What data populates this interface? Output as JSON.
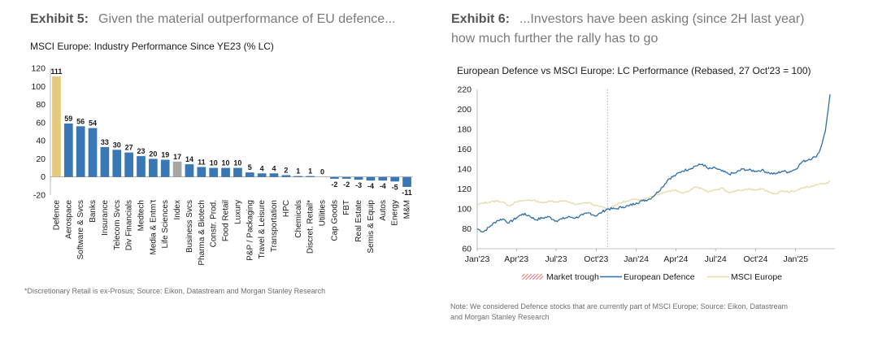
{
  "exhibit5": {
    "label": "Exhibit 5:",
    "heading": "Given the material outperformance of EU defence...",
    "chart_title": "MSCI Europe: Industry Performance Since YE23 (% LC)",
    "footnote": "*Discretionary Retail is ex-Prosus; Source: Eikon, Datastream and Morgan Stanley Research"
  },
  "exhibit6": {
    "label": "Exhibit 6:",
    "heading_line1": "...Investors have been asking (since 2H last year)",
    "heading_line2": "how much further the rally has to go",
    "chart_title": "European Defence vs MSCI Europe: LC Performance (Rebased, 27 Oct'23 = 100)",
    "footnote_line1": "Note: We considered Defence stocks that are currently part of MSCI Europe; Source: Eikon, Datastream",
    "footnote_line2": "and Morgan Stanley Research"
  },
  "colors": {
    "defence_bar": "#E5C97F",
    "index_bar": "#A6A6A6",
    "main_bar": "#3A78B5",
    "europe_line": "#E8D9A8",
    "defence_line": "#2F6FA8",
    "trough": "#E04B4B"
  },
  "chart_data": [
    {
      "type": "bar",
      "title": "MSCI Europe: Industry Performance Since YE23 (% LC)",
      "ylim": [
        -20,
        120
      ],
      "yticks": [
        -20,
        0,
        20,
        40,
        60,
        80,
        100,
        120
      ],
      "categories": [
        "Defence",
        "Aerospace",
        "Software & Svcs",
        "Banks",
        "Insurance",
        "Telecom Svcs",
        "Div Financials",
        "Medtech",
        "Media & Entm't",
        "Life Sciences",
        "Index",
        "Business Svcs",
        "Pharma & Biotech",
        "Constr. Prod.",
        "Food Retail",
        "Luxury",
        "P&P / Packaging",
        "Travel & Leisure",
        "Transportation",
        "HPC",
        "Chemicals",
        "Discret. Retail*",
        "Utilities",
        "Cap Goods",
        "FBT",
        "Real Estate",
        "Semis & Equip",
        "Autos",
        "Energy",
        "M&M"
      ],
      "values": [
        111,
        59,
        56,
        54,
        33,
        30,
        27,
        23,
        20,
        19,
        17,
        14,
        11,
        10,
        10,
        10,
        5,
        4,
        4,
        2,
        1,
        1,
        0,
        -2,
        -2,
        -3,
        -4,
        -4,
        -5,
        -11
      ],
      "value_labels": [
        "111",
        "59",
        "56",
        "54",
        "33",
        "30",
        "27",
        "23",
        "20",
        "19",
        "17",
        "14",
        "11",
        "10",
        "10",
        "10",
        "5",
        "4",
        "4",
        "2",
        "1",
        "1",
        "0",
        "-2",
        "-2",
        "-3",
        "-4",
        "-4",
        "-5",
        "-11"
      ],
      "grid": false
    },
    {
      "type": "line",
      "title": "European Defence vs MSCI Europe: LC Performance (Rebased, 27 Oct'23 = 100)",
      "ylim": [
        60,
        220
      ],
      "yticks": [
        60,
        80,
        100,
        120,
        140,
        160,
        180,
        200,
        220
      ],
      "xlim": [
        "2023-01-01",
        "2025-04-01"
      ],
      "xticks": [
        "Jan'23",
        "Apr'23",
        "Jul'23",
        "Oct'23",
        "Jan'24",
        "Apr'24",
        "Jul'24",
        "Oct'24",
        "Jan'25"
      ],
      "xtick_dates": [
        "2023-01-01",
        "2023-04-01",
        "2023-07-01",
        "2023-10-01",
        "2024-01-01",
        "2024-04-01",
        "2024-07-01",
        "2024-10-01",
        "2025-01-01"
      ],
      "market_trough_date": "2023-10-27",
      "legend": [
        "Market trough",
        "European Defence",
        "MSCI Europe"
      ],
      "legend_position": "bottom",
      "series": [
        {
          "name": "European Defence",
          "points": [
            [
              "2023-01-01",
              80
            ],
            [
              "2023-01-15",
              77
            ],
            [
              "2023-02-01",
              83
            ],
            [
              "2023-02-15",
              88
            ],
            [
              "2023-03-01",
              90
            ],
            [
              "2023-03-15",
              86
            ],
            [
              "2023-04-01",
              91
            ],
            [
              "2023-04-15",
              95
            ],
            [
              "2023-05-01",
              93
            ],
            [
              "2023-05-15",
              89
            ],
            [
              "2023-06-01",
              91
            ],
            [
              "2023-06-15",
              92
            ],
            [
              "2023-07-01",
              88
            ],
            [
              "2023-07-15",
              90
            ],
            [
              "2023-08-01",
              92
            ],
            [
              "2023-08-15",
              91
            ],
            [
              "2023-09-01",
              94
            ],
            [
              "2023-09-15",
              96
            ],
            [
              "2023-10-01",
              93
            ],
            [
              "2023-10-15",
              97
            ],
            [
              "2023-10-27",
              100
            ],
            [
              "2023-11-15",
              100
            ],
            [
              "2023-12-01",
              102
            ],
            [
              "2023-12-15",
              103
            ],
            [
              "2024-01-01",
              106
            ],
            [
              "2024-01-15",
              108
            ],
            [
              "2024-02-01",
              110
            ],
            [
              "2024-02-15",
              115
            ],
            [
              "2024-03-01",
              122
            ],
            [
              "2024-03-15",
              130
            ],
            [
              "2024-04-01",
              134
            ],
            [
              "2024-04-15",
              138
            ],
            [
              "2024-05-01",
              140
            ],
            [
              "2024-05-15",
              143
            ],
            [
              "2024-06-01",
              145
            ],
            [
              "2024-06-15",
              140
            ],
            [
              "2024-07-01",
              141
            ],
            [
              "2024-07-15",
              138
            ],
            [
              "2024-08-01",
              135
            ],
            [
              "2024-08-15",
              136
            ],
            [
              "2024-09-01",
              140
            ],
            [
              "2024-09-15",
              139
            ],
            [
              "2024-10-01",
              138
            ],
            [
              "2024-10-15",
              139
            ],
            [
              "2024-11-01",
              136
            ],
            [
              "2024-11-15",
              135
            ],
            [
              "2024-12-01",
              138
            ],
            [
              "2024-12-15",
              137
            ],
            [
              "2025-01-01",
              140
            ],
            [
              "2025-01-15",
              147
            ],
            [
              "2025-02-01",
              150
            ],
            [
              "2025-02-15",
              152
            ],
            [
              "2025-02-25",
              158
            ],
            [
              "2025-03-05",
              170
            ],
            [
              "2025-03-10",
              178
            ],
            [
              "2025-03-14",
              192
            ],
            [
              "2025-03-18",
              205
            ],
            [
              "2025-03-21",
              215
            ]
          ]
        },
        {
          "name": "MSCI Europe",
          "points": [
            [
              "2023-01-01",
              104
            ],
            [
              "2023-01-15",
              106
            ],
            [
              "2023-02-01",
              107
            ],
            [
              "2023-02-15",
              108
            ],
            [
              "2023-03-01",
              107
            ],
            [
              "2023-03-15",
              103
            ],
            [
              "2023-04-01",
              107
            ],
            [
              "2023-04-15",
              108
            ],
            [
              "2023-05-01",
              109
            ],
            [
              "2023-05-15",
              108
            ],
            [
              "2023-06-01",
              106
            ],
            [
              "2023-06-15",
              108
            ],
            [
              "2023-07-01",
              107
            ],
            [
              "2023-07-15",
              108
            ],
            [
              "2023-08-01",
              107
            ],
            [
              "2023-08-15",
              104
            ],
            [
              "2023-09-01",
              106
            ],
            [
              "2023-09-15",
              106
            ],
            [
              "2023-10-01",
              103
            ],
            [
              "2023-10-15",
              102
            ],
            [
              "2023-10-27",
              100
            ],
            [
              "2023-11-15",
              104
            ],
            [
              "2023-12-01",
              107
            ],
            [
              "2023-12-15",
              108
            ],
            [
              "2024-01-01",
              110
            ],
            [
              "2024-01-15",
              109
            ],
            [
              "2024-02-01",
              112
            ],
            [
              "2024-02-15",
              114
            ],
            [
              "2024-03-01",
              116
            ],
            [
              "2024-03-15",
              118
            ],
            [
              "2024-04-01",
              119
            ],
            [
              "2024-04-15",
              116
            ],
            [
              "2024-05-01",
              118
            ],
            [
              "2024-05-15",
              122
            ],
            [
              "2024-06-01",
              120
            ],
            [
              "2024-06-15",
              117
            ],
            [
              "2024-07-01",
              119
            ],
            [
              "2024-07-15",
              121
            ],
            [
              "2024-08-01",
              116
            ],
            [
              "2024-08-15",
              118
            ],
            [
              "2024-09-01",
              119
            ],
            [
              "2024-09-15",
              120
            ],
            [
              "2024-10-01",
              119
            ],
            [
              "2024-10-15",
              120
            ],
            [
              "2024-11-01",
              117
            ],
            [
              "2024-11-15",
              115
            ],
            [
              "2024-12-01",
              118
            ],
            [
              "2024-12-15",
              117
            ],
            [
              "2025-01-01",
              118
            ],
            [
              "2025-01-15",
              121
            ],
            [
              "2025-02-01",
              122
            ],
            [
              "2025-02-15",
              124
            ],
            [
              "2025-03-01",
              126
            ],
            [
              "2025-03-10",
              125
            ],
            [
              "2025-03-21",
              128
            ]
          ]
        }
      ],
      "grid": false
    }
  ]
}
